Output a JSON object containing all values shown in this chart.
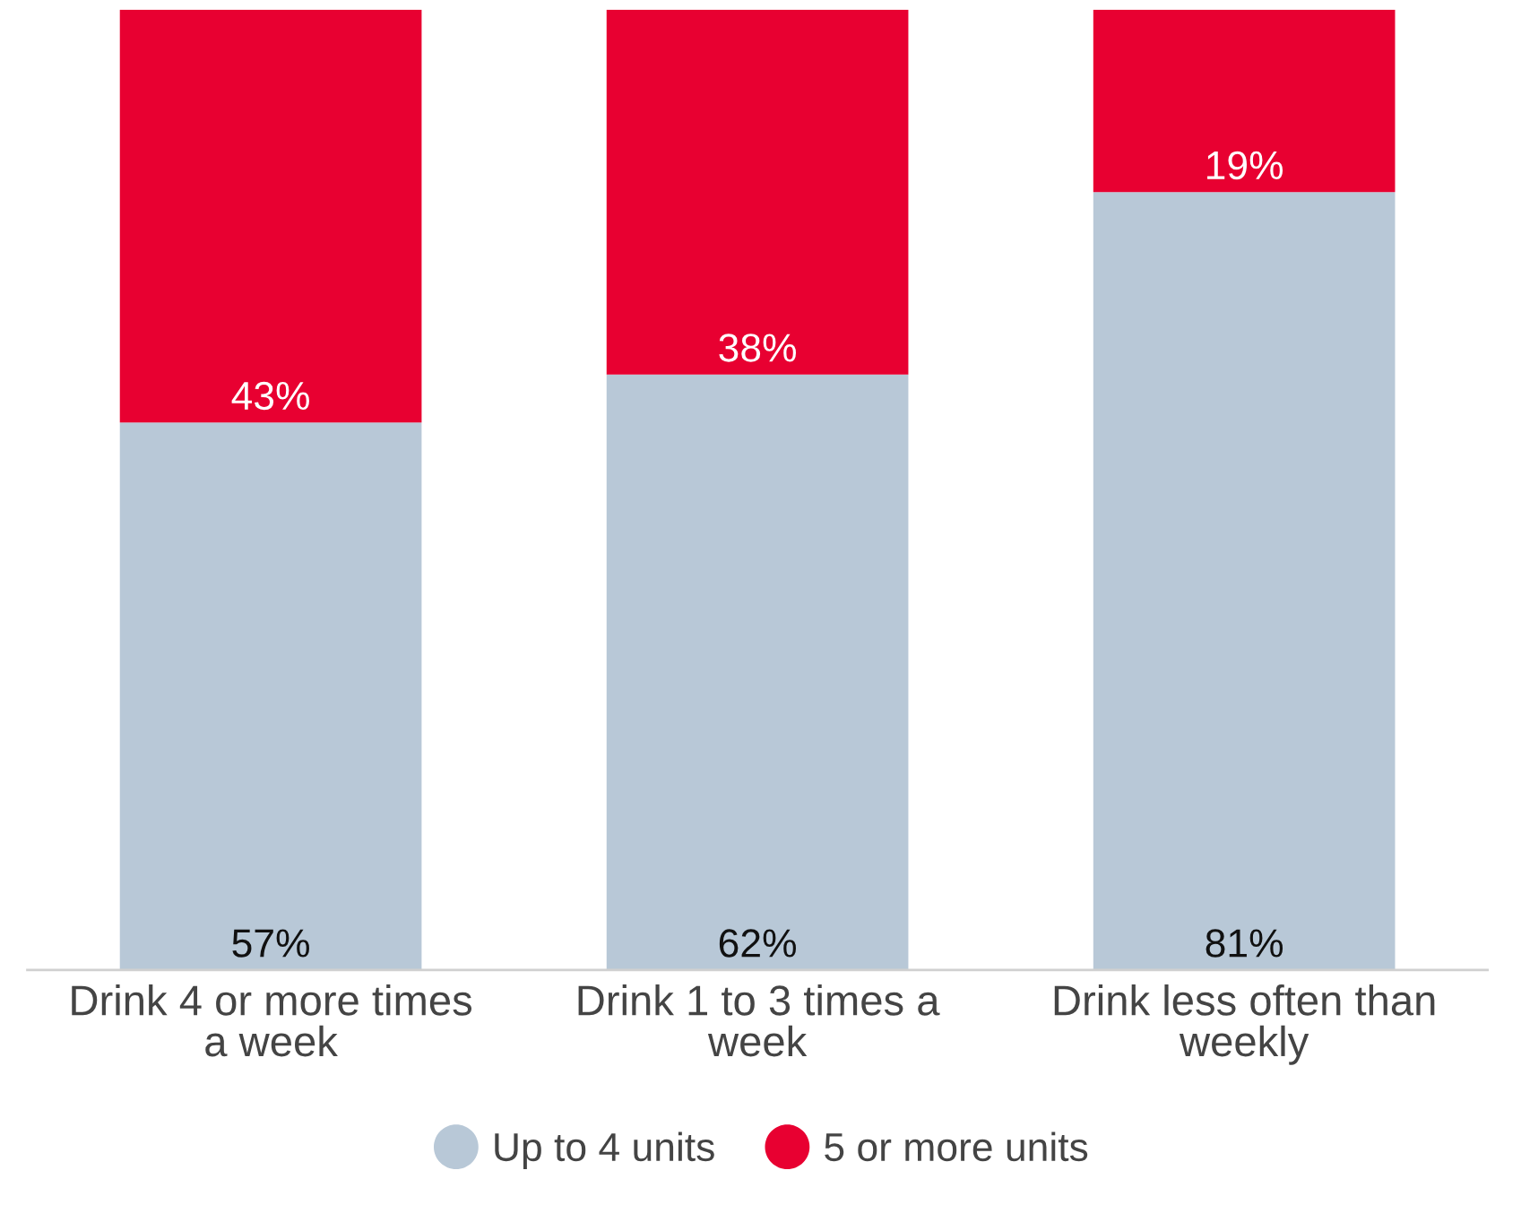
{
  "chart_data": {
    "type": "bar",
    "stacked": true,
    "categories": [
      "Drink 4 or more times a week",
      "Drink 1 to 3 times a week",
      "Drink less often than weekly"
    ],
    "series": [
      {
        "name": "Up to 4 units",
        "color": "#b8c8d7",
        "values": [
          57,
          62,
          81
        ],
        "value_labels": [
          "57%",
          "62%",
          "81%"
        ]
      },
      {
        "name": "5 or more units",
        "color": "#e80031",
        "values": [
          43,
          38,
          19
        ],
        "value_labels": [
          "43%",
          "38%",
          "19%"
        ]
      }
    ],
    "ylim": [
      0,
      100
    ],
    "tick_labels": "x",
    "legend": "bottom",
    "marker": "circle"
  }
}
